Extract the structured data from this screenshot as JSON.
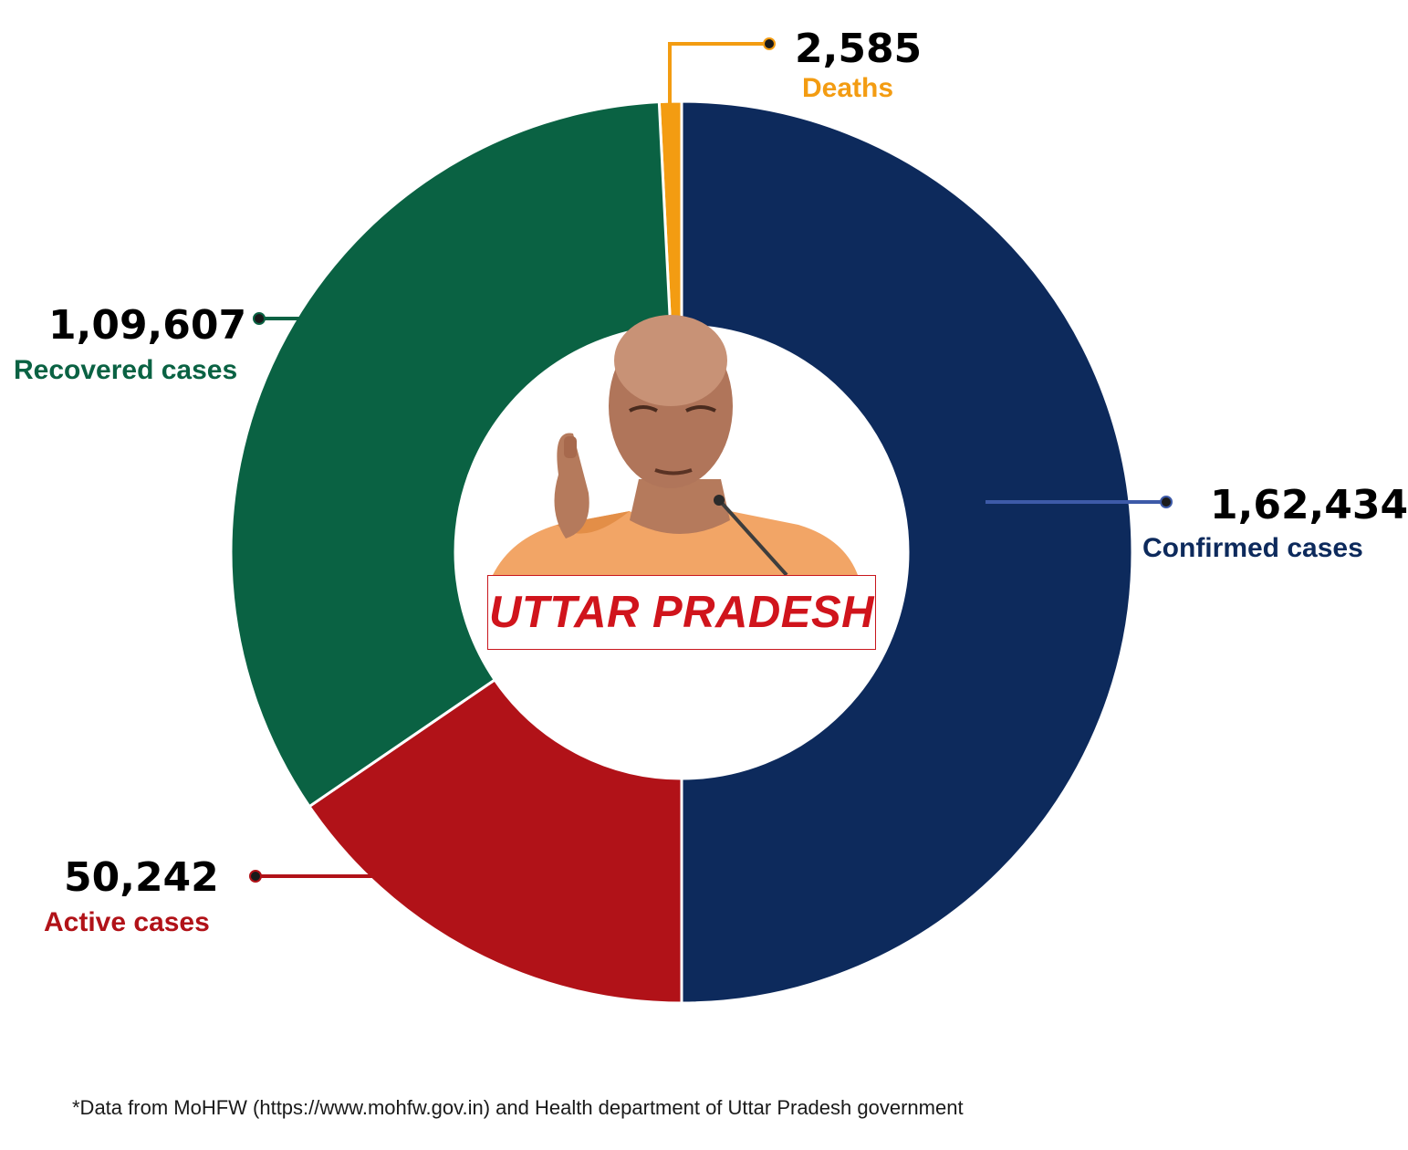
{
  "chart_data": {
    "type": "pie",
    "variant": "donut",
    "slices": [
      {
        "name": "Deaths",
        "value": 2585,
        "value_label": "2,585",
        "color": "#f39c12"
      },
      {
        "name": "Confirmed cases",
        "value": 162434,
        "value_label": "1,62,434",
        "color": "#0d2a5c"
      },
      {
        "name": "Active cases",
        "value": 50242,
        "value_label": "50,242",
        "color": "#b11218"
      },
      {
        "name": "Recovered cases",
        "value": 109607,
        "value_label": "1,09,607",
        "color": "#0a6243"
      }
    ],
    "center_title": "UTTAR PRADESH",
    "legend": "none"
  },
  "labels": {
    "deaths": {
      "value": "2,585",
      "name": "Deaths",
      "color": "#f39c12"
    },
    "confirmed": {
      "value": "1,62,434",
      "name": "Confirmed cases",
      "color": "#0d2a5c"
    },
    "active": {
      "value": "50,242",
      "name": "Active cases",
      "color": "#b11218"
    },
    "recovered": {
      "value": "1,09,607",
      "name": "Recovered cases",
      "color": "#0a6243"
    }
  },
  "center": {
    "title": "UTTAR PRADESH",
    "title_color": "#d0141c",
    "image": "portrait-photo"
  },
  "footnote": "*Data from MoHFW (https://www.mohfw.gov.in) and Health department of Uttar Pradesh government"
}
